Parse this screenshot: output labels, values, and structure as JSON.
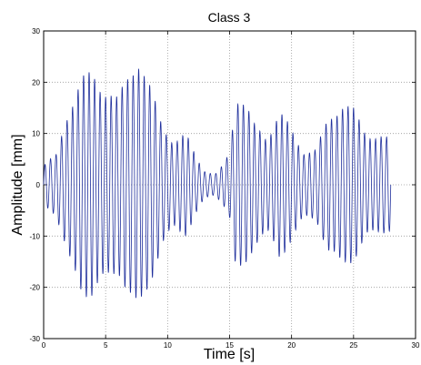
{
  "chart_data": {
    "type": "line",
    "title": "Class 3",
    "xlabel": "Time [s]",
    "ylabel": "Amplitude [mm]",
    "xlim": [
      0,
      30
    ],
    "ylim": [
      -30,
      30
    ],
    "x_ticks": [
      "0",
      "5",
      "10",
      "15",
      "20",
      "25",
      "30"
    ],
    "y_ticks": [
      "30",
      "20",
      "10",
      "0",
      "-10",
      "-20",
      "-30"
    ],
    "grid": true,
    "line_color": "#1f2f9c",
    "series": [
      {
        "envelope_time": [
          0,
          1,
          2,
          3,
          4,
          5,
          6,
          7,
          7.6,
          8.5,
          9.5,
          10.5,
          11.5,
          12.3,
          13,
          13.8,
          14.5,
          15,
          15.5,
          16,
          17,
          18,
          19,
          20,
          21,
          22,
          23,
          24,
          25,
          26,
          27,
          28
        ],
        "envelope_amplitude": [
          4,
          6,
          16,
          21,
          23,
          20,
          17,
          24,
          27,
          20,
          13,
          9,
          10,
          6,
          3,
          2,
          4,
          7,
          19,
          18,
          12,
          10,
          15,
          11,
          7,
          7,
          14,
          17,
          15,
          11,
          10,
          9
        ]
      }
    ]
  }
}
